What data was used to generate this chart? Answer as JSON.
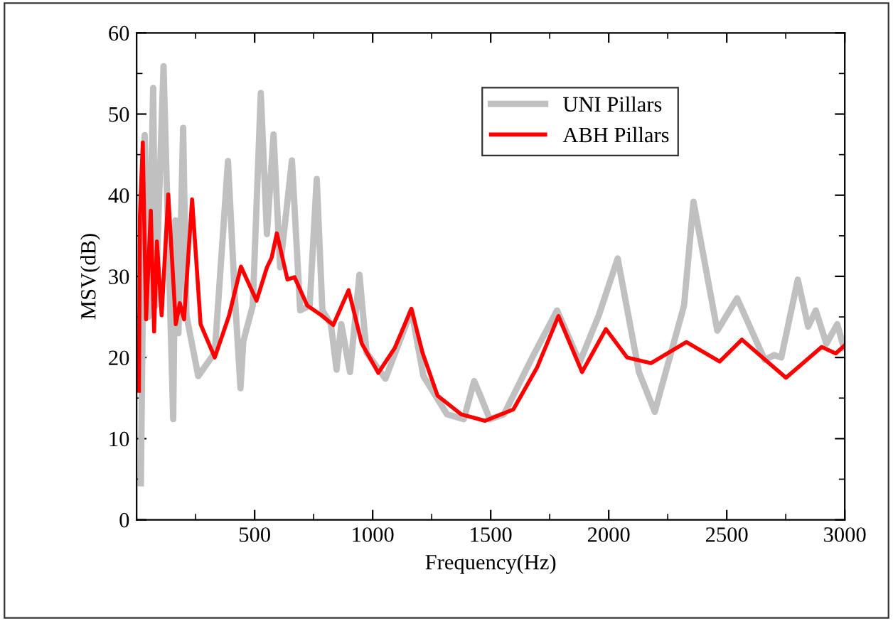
{
  "chart_data": {
    "type": "line",
    "xlabel": "Frequency(Hz)",
    "ylabel": "MSV(dB)",
    "xlim": [
      0,
      3000
    ],
    "xticks": [
      500,
      1000,
      1500,
      2000,
      2500,
      3000
    ],
    "ylim": [
      0,
      60
    ],
    "yticks": [
      0,
      10,
      20,
      30,
      40,
      50,
      60
    ],
    "grid": false,
    "legend": "top right",
    "marker": "none",
    "line_style": "solid",
    "series": [
      {
        "name": "UNI Pillars",
        "color": "#c0c0c0",
        "x": [
          18,
          34,
          50,
          70,
          80,
          114,
          155,
          164,
          177,
          197,
          211,
          261,
          331,
          387,
          416,
          440,
          452,
          492,
          526,
          552,
          580,
          608,
          658,
          693,
          733,
          763,
          787,
          823,
          847,
          867,
          904,
          944,
          974,
          1054,
          1134,
          1164,
          1215,
          1315,
          1386,
          1430,
          1456,
          1496,
          1556,
          1676,
          1781,
          1877,
          1958,
          2038,
          2128,
          2195,
          2319,
          2359,
          2460,
          2544,
          2661,
          2701,
          2731,
          2801,
          2845,
          2877,
          2922,
          2968,
          2996
        ],
        "values": [
          4.5,
          47.4,
          25,
          53.2,
          26.4,
          55.9,
          12.4,
          36.9,
          23,
          48.3,
          25.2,
          17.7,
          20.6,
          44.2,
          27.6,
          16.2,
          22,
          26.4,
          52.6,
          35.2,
          47.5,
          31.1,
          44.3,
          25.8,
          26.4,
          42,
          25.8,
          24.1,
          18.5,
          24.1,
          18.2,
          30.2,
          20.6,
          17.4,
          23.5,
          25.8,
          17.7,
          13,
          12.4,
          17.1,
          15.3,
          12.4,
          13,
          20,
          25.8,
          19.4,
          25.2,
          32.2,
          18.2,
          13.3,
          26.4,
          39.2,
          23.3,
          27.3,
          19.7,
          20.3,
          20,
          29.6,
          23.8,
          25.8,
          21.7,
          24.1,
          21.2
        ]
      },
      {
        "name": "ABH Pillars",
        "color": "#ff0000",
        "x": [
          10,
          14,
          26,
          40,
          60,
          74,
          86,
          106,
          134,
          166,
          183,
          201,
          235,
          271,
          331,
          392,
          442,
          508,
          552,
          572,
          594,
          639,
          669,
          723,
          783,
          833,
          898,
          954,
          1024,
          1094,
          1164,
          1211,
          1275,
          1375,
          1476,
          1596,
          1697,
          1787,
          1887,
          1988,
          2078,
          2179,
          2329,
          2470,
          2564,
          2751,
          2902,
          2962,
          3000
        ],
        "values": [
          15.9,
          37.5,
          46.5,
          24.7,
          38.1,
          23.2,
          34.3,
          25.2,
          40.1,
          24.1,
          26.7,
          24.7,
          39.5,
          24.1,
          20,
          25.2,
          31.2,
          27,
          31.1,
          32.3,
          35.3,
          29.6,
          29.9,
          26.4,
          25.2,
          24,
          28.3,
          21.7,
          18.1,
          21.2,
          26,
          20.6,
          15.3,
          13,
          12.2,
          13.6,
          18.8,
          25.1,
          18.2,
          23.5,
          20,
          19.3,
          21.9,
          19.5,
          22.2,
          17.5,
          21.3,
          20.5,
          21.5
        ]
      }
    ]
  }
}
